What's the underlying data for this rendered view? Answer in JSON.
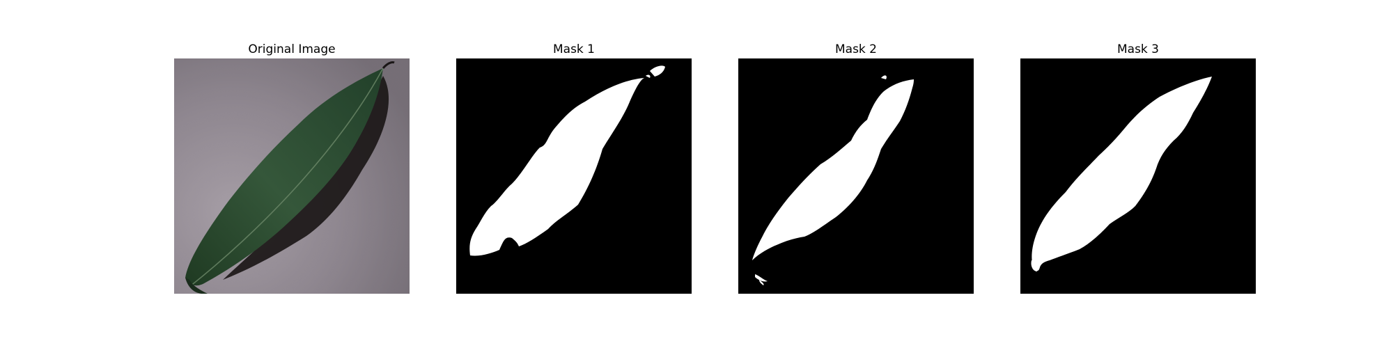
{
  "figure": {
    "panels": [
      {
        "title": "Original Image",
        "content": "photo-leaf-on-gray-surface"
      },
      {
        "title": "Mask 1",
        "content": "binary-mask"
      },
      {
        "title": "Mask 2",
        "content": "binary-mask"
      },
      {
        "title": "Mask 3",
        "content": "binary-mask"
      }
    ]
  },
  "colors": {
    "background": "#ffffff",
    "mask_background": "#000000",
    "mask_foreground": "#ffffff",
    "photo_surface": "#8f8790",
    "leaf": "#2c4a2c",
    "leaf_shadow": "#1b1717"
  }
}
